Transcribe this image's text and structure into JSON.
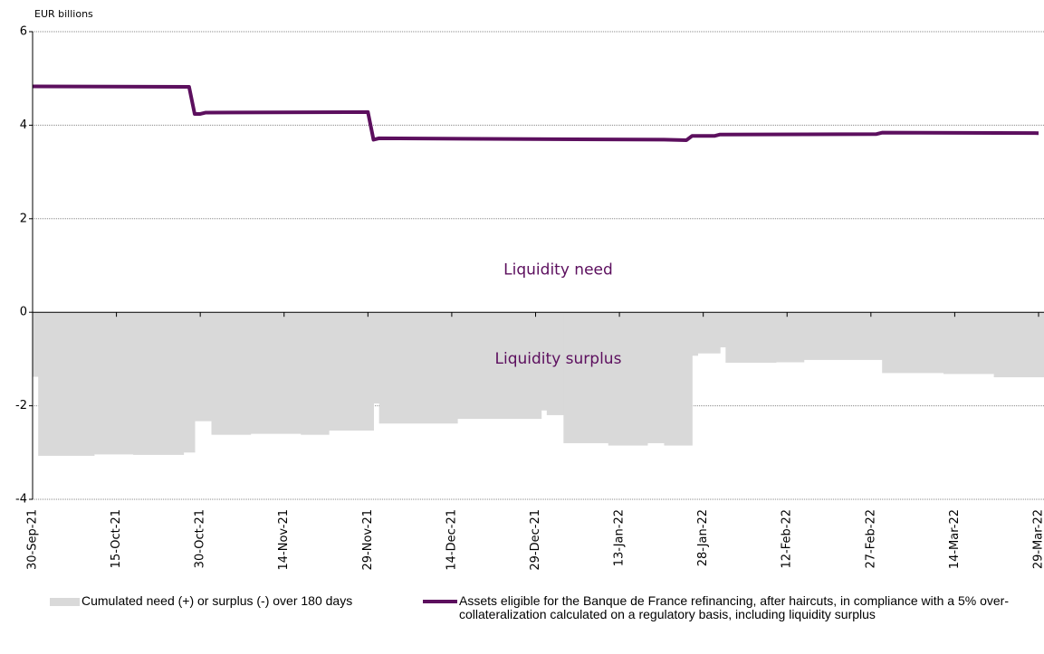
{
  "chart_data": {
    "type": "line",
    "y_label": "EUR billions",
    "xlim": [
      "2021-09-30",
      "2022-03-30"
    ],
    "xticks": [
      {
        "value": "2021-09-30",
        "label": "30-Sep-21"
      },
      {
        "value": "2021-10-15",
        "label": "15-Oct-21"
      },
      {
        "value": "2021-10-30",
        "label": "30-Oct-21"
      },
      {
        "value": "2021-11-14",
        "label": "14-Nov-21"
      },
      {
        "value": "2021-11-29",
        "label": "29-Nov-21"
      },
      {
        "value": "2021-12-14",
        "label": "14-Dec-21"
      },
      {
        "value": "2021-12-29",
        "label": "29-Dec-21"
      },
      {
        "value": "2022-01-13",
        "label": "13-Jan-22"
      },
      {
        "value": "2022-01-28",
        "label": "28-Jan-22"
      },
      {
        "value": "2022-02-12",
        "label": "12-Feb-22"
      },
      {
        "value": "2022-02-27",
        "label": "27-Feb-22"
      },
      {
        "value": "2022-03-14",
        "label": "14-Mar-22"
      },
      {
        "value": "2022-03-29",
        "label": "29-Mar-22"
      }
    ],
    "ylim": [
      -4,
      6
    ],
    "yticks": [
      -4,
      -2,
      0,
      2,
      4,
      6
    ],
    "grid": true,
    "annotations": [
      {
        "text": "Liquidity need",
        "x": "2021-12-29",
        "y": 0.9
      },
      {
        "text": "Liquidity surplus",
        "x": "2021-12-29",
        "y": -1
      }
    ],
    "series": [
      {
        "name": "Cumulated need (+) or surplus (-) over 180 days",
        "kind": "step-area",
        "color": "#d9d9d9",
        "x": [
          "2021-09-30",
          "2021-10-01",
          "2021-10-11",
          "2021-10-18",
          "2021-10-27",
          "2021-10-29",
          "2021-11-01",
          "2021-11-08",
          "2021-11-17",
          "2021-11-22",
          "2021-11-30",
          "2021-12-01",
          "2021-12-15",
          "2021-12-30",
          "2021-12-31",
          "2022-01-03",
          "2022-01-11",
          "2022-01-18",
          "2022-01-21",
          "2022-01-26",
          "2022-01-27",
          "2022-01-31",
          "2022-02-01",
          "2022-02-10",
          "2022-02-15",
          "2022-03-01",
          "2022-03-12",
          "2022-03-21"
        ],
        "values": [
          -1.38,
          -3.07,
          -3.04,
          -3.05,
          -3.0,
          -2.33,
          -2.62,
          -2.6,
          -2.62,
          -2.53,
          -1.95,
          -2.38,
          -2.28,
          -2.1,
          -2.2,
          -2.8,
          -2.85,
          -2.8,
          -2.85,
          -0.93,
          -0.88,
          -0.75,
          -1.08,
          -1.07,
          -1.02,
          -1.3,
          -1.32,
          -1.39
        ]
      },
      {
        "name": "Assets eligible for the Banque de France refinancing, after haircuts, in compliance with a 5% over-collateralization calculated on a regulatory basis, including liquidity surplus",
        "kind": "line",
        "color": "#5c0f5e",
        "x": [
          "2021-09-30",
          "2021-10-28",
          "2021-10-29",
          "2021-10-30",
          "2021-10-31",
          "2021-11-29",
          "2021-11-30",
          "2021-12-01",
          "2022-01-21",
          "2022-01-25",
          "2022-01-26",
          "2022-01-30",
          "2022-01-31",
          "2022-02-28",
          "2022-03-01",
          "2022-03-29"
        ],
        "values": [
          4.83,
          4.82,
          4.24,
          4.24,
          4.27,
          4.28,
          3.69,
          3.72,
          3.69,
          3.68,
          3.77,
          3.77,
          3.8,
          3.81,
          3.84,
          3.83
        ]
      }
    ]
  }
}
